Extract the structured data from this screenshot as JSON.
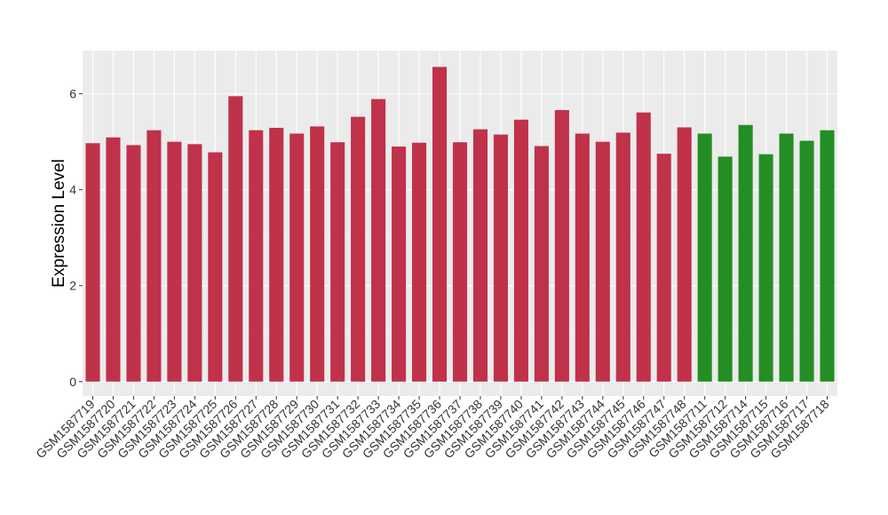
{
  "chart_data": {
    "type": "bar",
    "title": "",
    "xlabel": "",
    "ylabel": "Expression Level",
    "ylim": [
      -0.3,
      6.9
    ],
    "yticks": [
      0,
      2,
      4,
      6
    ],
    "grid": true,
    "legend": "none",
    "colors": {
      "group_a": "#c0314a",
      "group_b": "#238e23",
      "panel_bg": "#ebebeb"
    },
    "categories": [
      "GSM1587719",
      "GSM1587720",
      "GSM1587721",
      "GSM1587722",
      "GSM1587723",
      "GSM1587724",
      "GSM1587725",
      "GSM1587726",
      "GSM1587727",
      "GSM1587728",
      "GSM1587729",
      "GSM1587730",
      "GSM1587731",
      "GSM1587732",
      "GSM1587733",
      "GSM1587734",
      "GSM1587735",
      "GSM1587736",
      "GSM1587737",
      "GSM1587738",
      "GSM1587739",
      "GSM1587740",
      "GSM1587741",
      "GSM1587742",
      "GSM1587743",
      "GSM1587744",
      "GSM1587745",
      "GSM1587746",
      "GSM1587747",
      "GSM1587748",
      "GSM1587711",
      "GSM1587712",
      "GSM1587714",
      "GSM1587715",
      "GSM1587716",
      "GSM1587717",
      "GSM1587718"
    ],
    "values": [
      4.97,
      5.09,
      4.93,
      5.24,
      5.0,
      4.95,
      4.78,
      5.95,
      5.24,
      5.29,
      5.17,
      5.32,
      4.99,
      5.52,
      5.89,
      4.9,
      4.98,
      6.56,
      4.99,
      5.26,
      5.15,
      5.46,
      4.91,
      5.66,
      5.17,
      5.0,
      5.19,
      5.61,
      4.75,
      5.3,
      5.17,
      4.69,
      5.35,
      4.74,
      5.17,
      5.02,
      5.24
    ],
    "groups": [
      "a",
      "a",
      "a",
      "a",
      "a",
      "a",
      "a",
      "a",
      "a",
      "a",
      "a",
      "a",
      "a",
      "a",
      "a",
      "a",
      "a",
      "a",
      "a",
      "a",
      "a",
      "a",
      "a",
      "a",
      "a",
      "a",
      "a",
      "a",
      "a",
      "a",
      "b",
      "b",
      "b",
      "b",
      "b",
      "b",
      "b"
    ]
  }
}
